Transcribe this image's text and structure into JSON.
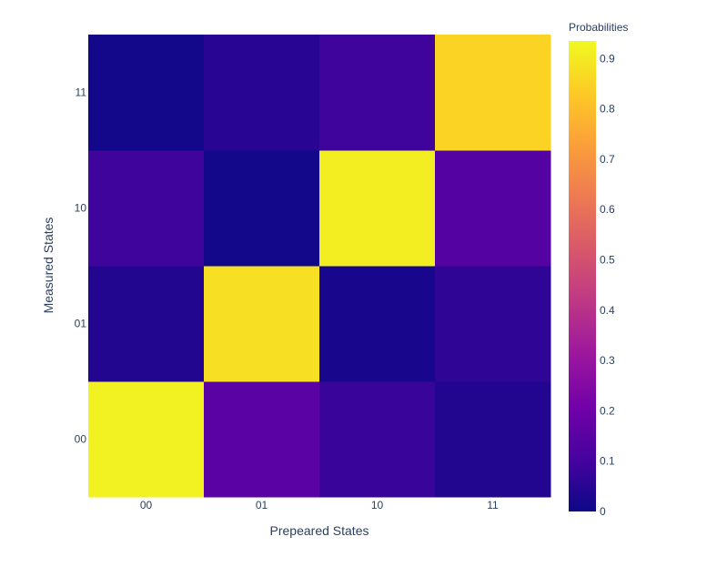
{
  "chart_data": {
    "type": "heatmap",
    "x": [
      "00",
      "01",
      "10",
      "11"
    ],
    "y": [
      "00",
      "01",
      "10",
      "11"
    ],
    "xlabel": "Prepeared States",
    "ylabel": "Measured States",
    "z": [
      [
        0.92,
        0.15,
        0.08,
        0.04
      ],
      [
        0.04,
        0.88,
        0.02,
        0.06
      ],
      [
        0.09,
        0.01,
        0.91,
        0.14
      ],
      [
        0.01,
        0.05,
        0.09,
        0.85
      ]
    ],
    "zlim": [
      0,
      0.935
    ],
    "colorscale": "Plasma",
    "colors": [
      "#0d0887",
      "#46039f",
      "#7201a8",
      "#9c179e",
      "#bd3786",
      "#d8576b",
      "#ed7953",
      "#fb9f3a",
      "#fdca26",
      "#f0f921"
    ],
    "colorbar": {
      "title": "Probabilities",
      "ticks": [
        "0",
        "0.1",
        "0.2",
        "0.3",
        "0.4",
        "0.5",
        "0.6",
        "0.7",
        "0.8",
        "0.9"
      ]
    },
    "grid": false,
    "legend": "right"
  }
}
